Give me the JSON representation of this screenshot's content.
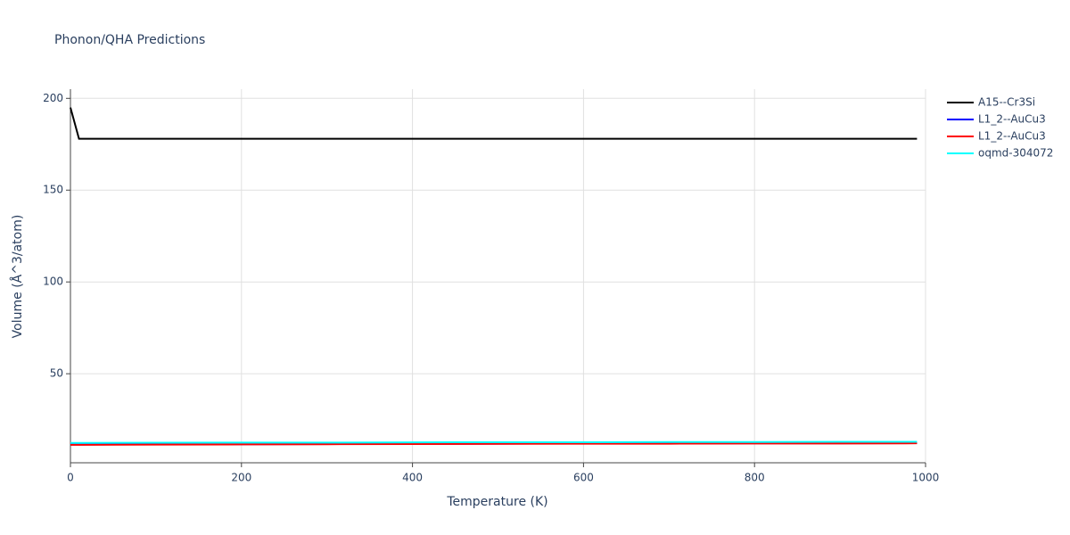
{
  "chart_data": {
    "type": "line",
    "title": "Phonon/QHA Predictions",
    "x_label": "Temperature (K)",
    "y_label": "Volume (Å^3/atom)",
    "x": [
      0,
      10,
      100,
      200,
      300,
      400,
      500,
      600,
      700,
      800,
      900,
      990
    ],
    "series": [
      {
        "name": "A15--Cr3Si",
        "color": "#000000",
        "values": [
          195,
          178,
          178,
          178,
          178,
          178,
          178,
          178,
          178,
          178,
          178,
          178
        ]
      },
      {
        "name": "L1_2--AuCu3",
        "color": "#0000ff",
        "values": [
          11.4,
          11.4,
          11.5,
          11.6,
          11.7,
          11.8,
          11.9,
          12.0,
          12.0,
          12.1,
          12.1,
          12.2
        ]
      },
      {
        "name": "L1_2--AuCu3",
        "color": "#ff0000",
        "values": [
          11.3,
          11.3,
          11.4,
          11.5,
          11.6,
          11.7,
          11.8,
          11.9,
          11.9,
          12.0,
          12.0,
          12.1
        ]
      },
      {
        "name": "oqmd-304072",
        "color": "#00ffff",
        "values": [
          12.3,
          12.3,
          12.4,
          12.5,
          12.5,
          12.6,
          12.7,
          12.7,
          12.8,
          12.8,
          12.9,
          12.9
        ]
      }
    ],
    "xlim": [
      0,
      1000
    ],
    "xticks": [
      0,
      200,
      400,
      600,
      800,
      1000
    ],
    "ylim": [
      1.5,
      205
    ],
    "yticks": [
      50,
      100,
      150,
      200
    ],
    "grid": true
  }
}
